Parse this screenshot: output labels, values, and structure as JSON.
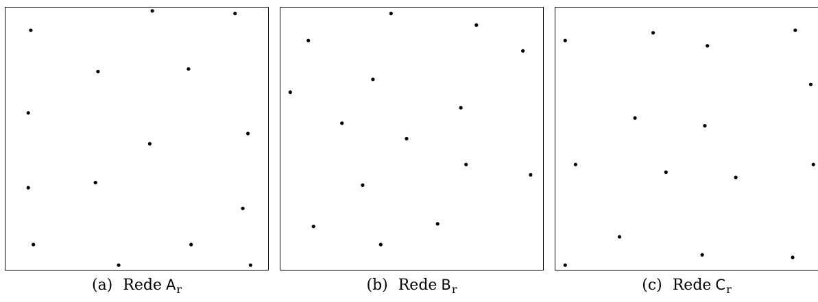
{
  "panels": [
    {
      "caption": {
        "tag": "(a)",
        "word": "Rede",
        "letter": "A",
        "sub": "r"
      },
      "points": [
        [
          0.09,
          0.92
        ],
        [
          0.56,
          0.995
        ],
        [
          0.88,
          0.985
        ],
        [
          0.35,
          0.76
        ],
        [
          0.7,
          0.77
        ],
        [
          0.08,
          0.6
        ],
        [
          0.93,
          0.52
        ],
        [
          0.55,
          0.48
        ],
        [
          0.08,
          0.31
        ],
        [
          0.34,
          0.33
        ],
        [
          0.91,
          0.23
        ],
        [
          0.1,
          0.09
        ],
        [
          0.71,
          0.09
        ],
        [
          0.43,
          0.01
        ],
        [
          0.94,
          0.01
        ]
      ]
    },
    {
      "caption": {
        "tag": "(b)",
        "word": "Rede",
        "letter": "B",
        "sub": "r"
      },
      "points": [
        [
          0.42,
          0.985
        ],
        [
          0.75,
          0.94
        ],
        [
          0.1,
          0.88
        ],
        [
          0.93,
          0.84
        ],
        [
          0.35,
          0.73
        ],
        [
          0.03,
          0.68
        ],
        [
          0.69,
          0.62
        ],
        [
          0.23,
          0.56
        ],
        [
          0.48,
          0.5
        ],
        [
          0.71,
          0.4
        ],
        [
          0.96,
          0.36
        ],
        [
          0.31,
          0.32
        ],
        [
          0.12,
          0.16
        ],
        [
          0.6,
          0.17
        ],
        [
          0.38,
          0.09
        ]
      ]
    },
    {
      "caption": {
        "tag": "(c)",
        "word": "Rede",
        "letter": "C",
        "sub": "r"
      },
      "points": [
        [
          0.37,
          0.91
        ],
        [
          0.92,
          0.92
        ],
        [
          0.03,
          0.88
        ],
        [
          0.58,
          0.86
        ],
        [
          0.98,
          0.71
        ],
        [
          0.3,
          0.58
        ],
        [
          0.57,
          0.55
        ],
        [
          0.07,
          0.4
        ],
        [
          0.42,
          0.37
        ],
        [
          0.69,
          0.35
        ],
        [
          0.99,
          0.4
        ],
        [
          0.24,
          0.12
        ],
        [
          0.56,
          0.05
        ],
        [
          0.91,
          0.04
        ],
        [
          0.03,
          0.01
        ]
      ]
    }
  ]
}
